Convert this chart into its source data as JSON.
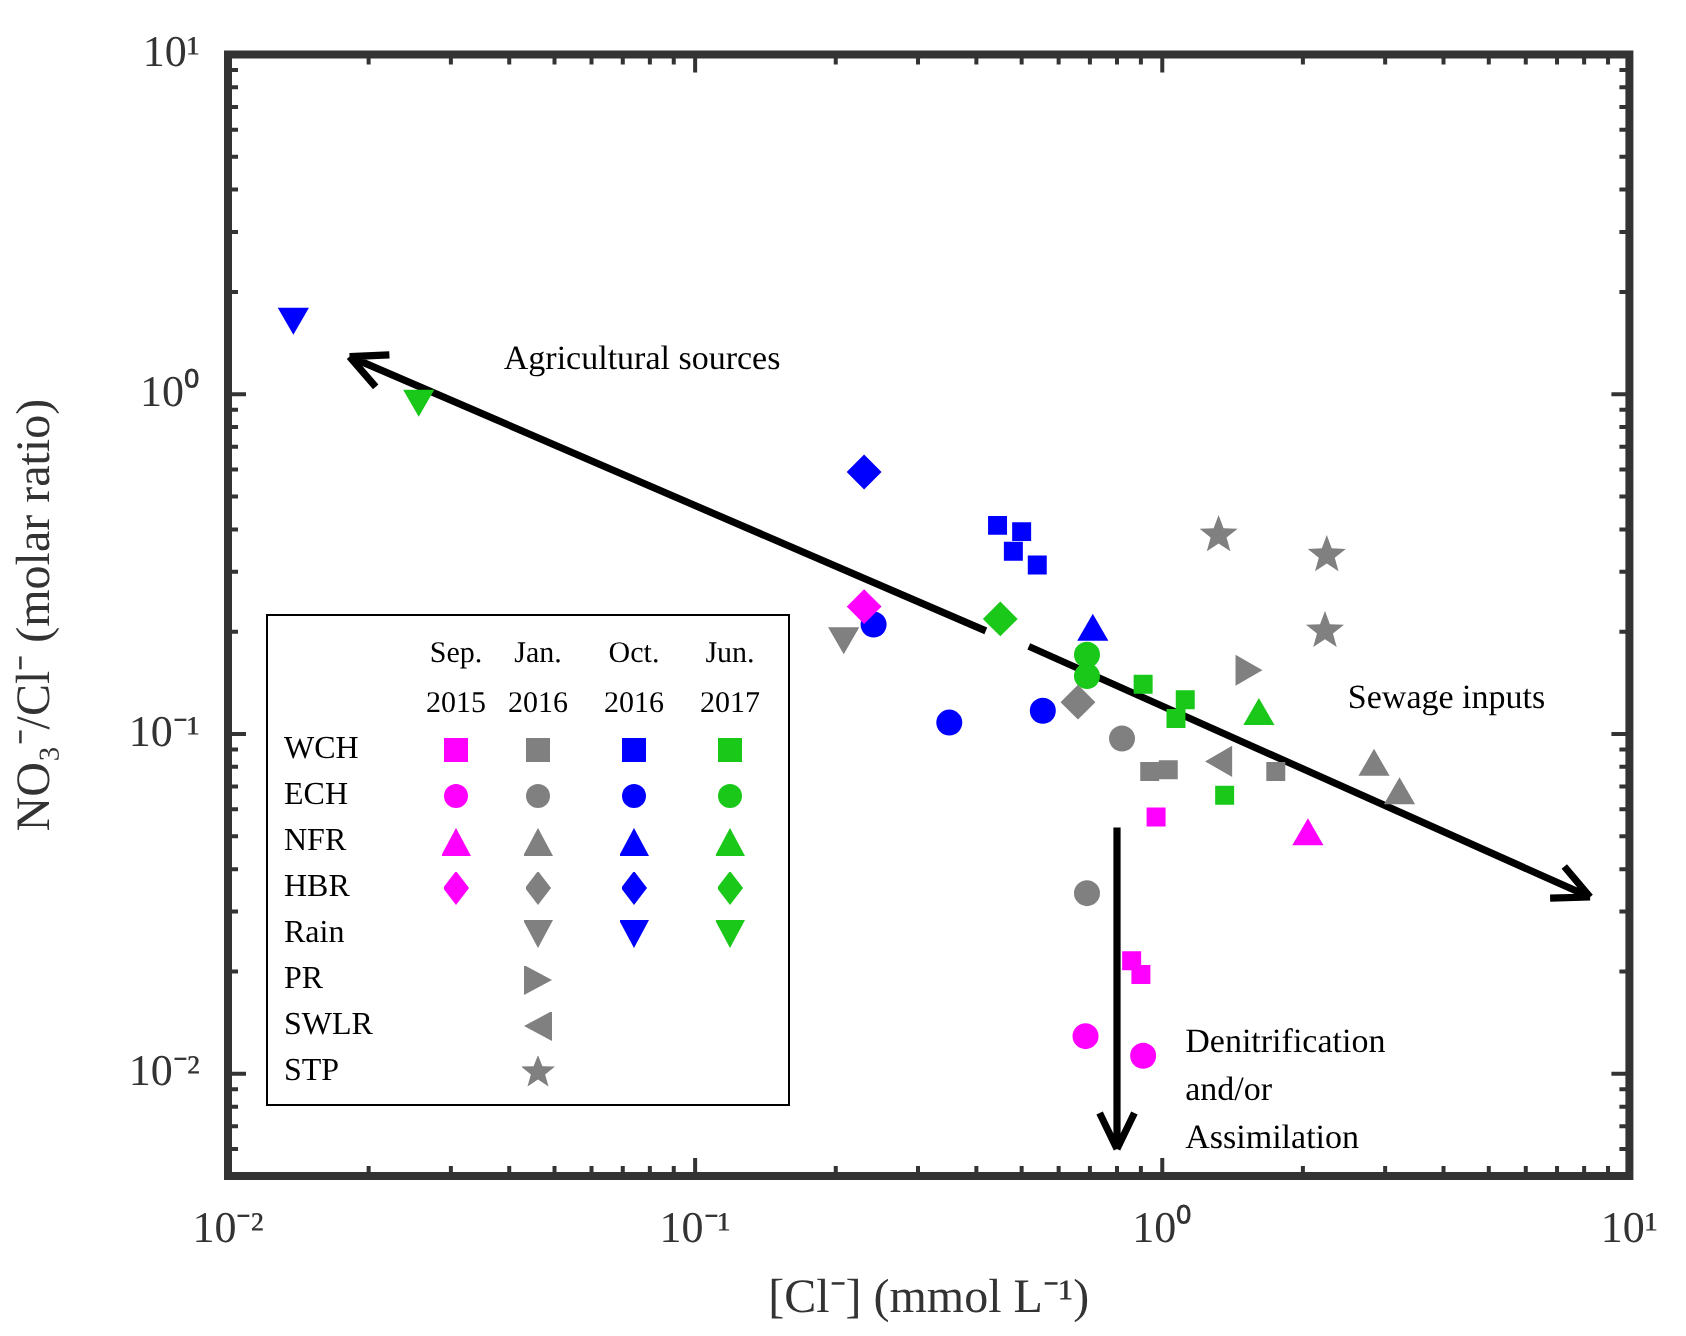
{
  "chart_data": {
    "type": "scatter",
    "xlabel": "[Cl⁻] (mmol L⁻¹)",
    "ylabel": "NO₃⁻/Cl⁻ (molar ratio)",
    "log": "xy",
    "xlim": [
      0.01,
      10
    ],
    "ylim": [
      0.005,
      10
    ],
    "xticks": [
      {
        "value": 0.01,
        "label": "10⁻²"
      },
      {
        "value": 0.02,
        "label": null
      },
      {
        "value": 0.03,
        "label": null
      },
      {
        "value": 0.04,
        "label": null
      },
      {
        "value": 0.05,
        "label": null
      },
      {
        "value": 0.06,
        "label": null
      },
      {
        "value": 0.07,
        "label": null
      },
      {
        "value": 0.08,
        "label": null
      },
      {
        "value": 0.09,
        "label": null
      },
      {
        "value": 0.1,
        "label": "10⁻¹"
      },
      {
        "value": 0.2,
        "label": null
      },
      {
        "value": 0.3,
        "label": null
      },
      {
        "value": 0.4,
        "label": null
      },
      {
        "value": 0.5,
        "label": null
      },
      {
        "value": 0.6,
        "label": null
      },
      {
        "value": 0.7,
        "label": null
      },
      {
        "value": 0.8,
        "label": null
      },
      {
        "value": 0.9,
        "label": null
      },
      {
        "value": 1,
        "label": "10⁰"
      },
      {
        "value": 2,
        "label": null
      },
      {
        "value": 3,
        "label": null
      },
      {
        "value": 4,
        "label": null
      },
      {
        "value": 5,
        "label": null
      },
      {
        "value": 6,
        "label": null
      },
      {
        "value": 7,
        "label": null
      },
      {
        "value": 8,
        "label": null
      },
      {
        "value": 9,
        "label": null
      },
      {
        "value": 10,
        "label": "10¹"
      }
    ],
    "yticks": [
      {
        "value": 0.006,
        "label": null
      },
      {
        "value": 0.007,
        "label": null
      },
      {
        "value": 0.008,
        "label": null
      },
      {
        "value": 0.009,
        "label": null
      },
      {
        "value": 0.01,
        "label": "10⁻²"
      },
      {
        "value": 0.02,
        "label": null
      },
      {
        "value": 0.03,
        "label": null
      },
      {
        "value": 0.04,
        "label": null
      },
      {
        "value": 0.05,
        "label": null
      },
      {
        "value": 0.06,
        "label": null
      },
      {
        "value": 0.07,
        "label": null
      },
      {
        "value": 0.08,
        "label": null
      },
      {
        "value": 0.09,
        "label": null
      },
      {
        "value": 0.1,
        "label": "10⁻¹"
      },
      {
        "value": 0.2,
        "label": null
      },
      {
        "value": 0.3,
        "label": null
      },
      {
        "value": 0.4,
        "label": null
      },
      {
        "value": 0.5,
        "label": null
      },
      {
        "value": 0.6,
        "label": null
      },
      {
        "value": 0.7,
        "label": null
      },
      {
        "value": 0.8,
        "label": null
      },
      {
        "value": 0.9,
        "label": null
      },
      {
        "value": 1,
        "label": "10⁰"
      },
      {
        "value": 2,
        "label": null
      },
      {
        "value": 3,
        "label": null
      },
      {
        "value": 4,
        "label": null
      },
      {
        "value": 5,
        "label": null
      },
      {
        "value": 6,
        "label": null
      },
      {
        "value": 7,
        "label": null
      },
      {
        "value": 8,
        "label": null
      },
      {
        "value": 9,
        "label": null
      },
      {
        "value": 10,
        "label": "10¹"
      }
    ],
    "annotations": [
      "Agricultural sources",
      "Sewage inputs",
      "Denitrification and/or Assimilation",
      "Sep. 2015",
      "Jan. 2016",
      "Oct. 2016",
      "Jun. 2017",
      "WCH",
      "ECH",
      "NFR",
      "HBR",
      "Rain",
      "PR",
      "SWLR",
      "STP"
    ],
    "series": [
      {
        "marker": "square",
        "color": "#ff00ff",
        "x": [
          0.97,
          0.86,
          0.9
        ],
        "values": [
          0.057,
          0.0215,
          0.0196
        ]
      },
      {
        "marker": "circle",
        "color": "#ff00ff",
        "x": [
          0.685,
          0.91
        ],
        "values": [
          0.0129,
          0.0113
        ]
      },
      {
        "marker": "triangle",
        "color": "#ff00ff",
        "x": [
          2.05
        ],
        "values": [
          0.05
        ]
      },
      {
        "marker": "diamond",
        "color": "#ff00ff",
        "x": [
          0.23
        ],
        "values": [
          0.237
        ]
      },
      {
        "marker": "square",
        "color": "#808080",
        "x": [
          0.94,
          1.03,
          1.75
        ],
        "values": [
          0.0775,
          0.0785,
          0.0775
        ]
      },
      {
        "marker": "circle",
        "color": "#808080",
        "x": [
          0.82,
          0.69
        ],
        "values": [
          0.097,
          0.034
        ]
      },
      {
        "marker": "triangle",
        "color": "#808080",
        "x": [
          2.84,
          3.22
        ],
        "values": [
          0.08,
          0.066
        ]
      },
      {
        "marker": "diamond",
        "color": "#808080",
        "x": [
          0.66
        ],
        "values": [
          0.124
        ]
      },
      {
        "marker": "triangle-down",
        "color": "#808080",
        "x": [
          0.208
        ],
        "values": [
          0.194
        ]
      },
      {
        "marker": "triangle-right",
        "color": "#808080",
        "x": [
          1.5
        ],
        "values": [
          0.154
        ]
      },
      {
        "marker": "triangle-left",
        "color": "#808080",
        "x": [
          1.35
        ],
        "values": [
          0.083
        ]
      },
      {
        "marker": "star",
        "color": "#808080",
        "x": [
          1.32,
          2.25,
          2.23
        ],
        "values": [
          0.385,
          0.336,
          0.201
        ]
      },
      {
        "marker": "square",
        "color": "#0000ff",
        "x": [
          0.444,
          0.5,
          0.48,
          0.54
        ],
        "values": [
          0.411,
          0.394,
          0.345,
          0.314
        ]
      },
      {
        "marker": "circle",
        "color": "#0000ff",
        "x": [
          0.241,
          0.35,
          0.555
        ],
        "values": [
          0.21,
          0.108,
          0.117
        ]
      },
      {
        "marker": "triangle",
        "color": "#0000ff",
        "x": [
          0.71
        ],
        "values": [
          0.2
        ]
      },
      {
        "marker": "diamond",
        "color": "#0000ff",
        "x": [
          0.23
        ],
        "values": [
          0.59
        ]
      },
      {
        "marker": "triangle-down",
        "color": "#0000ff",
        "x": [
          0.0138
        ],
        "values": [
          1.69
        ]
      },
      {
        "marker": "square",
        "color": "#19c819",
        "x": [
          0.91,
          1.12,
          1.07,
          1.36
        ],
        "values": [
          0.14,
          0.126,
          0.111,
          0.066
        ]
      },
      {
        "marker": "circle",
        "color": "#19c819",
        "x": [
          0.69,
          0.69
        ],
        "values": [
          0.171,
          0.148
        ]
      },
      {
        "marker": "triangle",
        "color": "#19c819",
        "x": [
          1.61
        ],
        "values": [
          0.113
        ]
      },
      {
        "marker": "diamond",
        "color": "#19c819",
        "x": [
          0.45
        ],
        "values": [
          0.218
        ]
      },
      {
        "marker": "triangle-down",
        "color": "#19c819",
        "x": [
          0.0256
        ],
        "values": [
          0.97
        ]
      }
    ]
  }
}
